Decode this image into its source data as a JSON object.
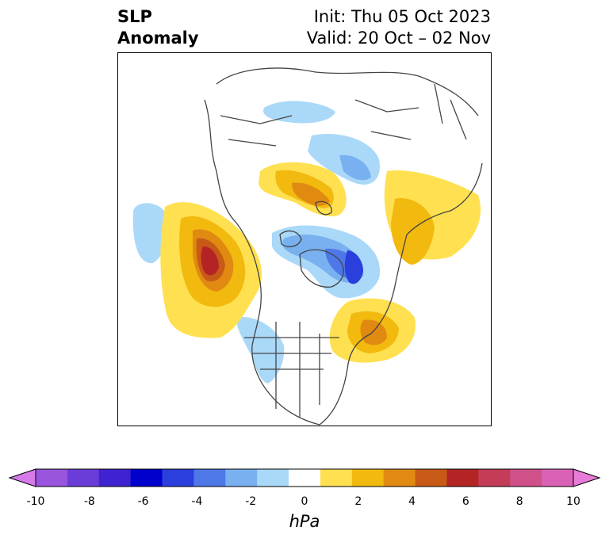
{
  "header": {
    "title_line1": "SLP",
    "title_line2": "Anomaly",
    "init": "Init: Thu 05 Oct 2023",
    "valid": "Valid: 20 Oct – 02 Nov"
  },
  "colorbar": {
    "unit": "hPa",
    "ticks": [
      "-10",
      "-8",
      "-6",
      "-4",
      "-2",
      "0",
      "2",
      "4",
      "6",
      "8",
      "10"
    ],
    "colors": [
      "#9955dd",
      "#6a3cd8",
      "#3f22d0",
      "#0000cc",
      "#2a3fdc",
      "#4e78e8",
      "#79b0f0",
      "#aad8f8",
      "#ffffff",
      "#ffe050",
      "#f2b90f",
      "#e08a12",
      "#c85a18",
      "#b42424",
      "#c43c58",
      "#d0508a",
      "#da62b6"
    ],
    "min_color": "#d57ae8",
    "max_color": "#e87ad8"
  }
}
